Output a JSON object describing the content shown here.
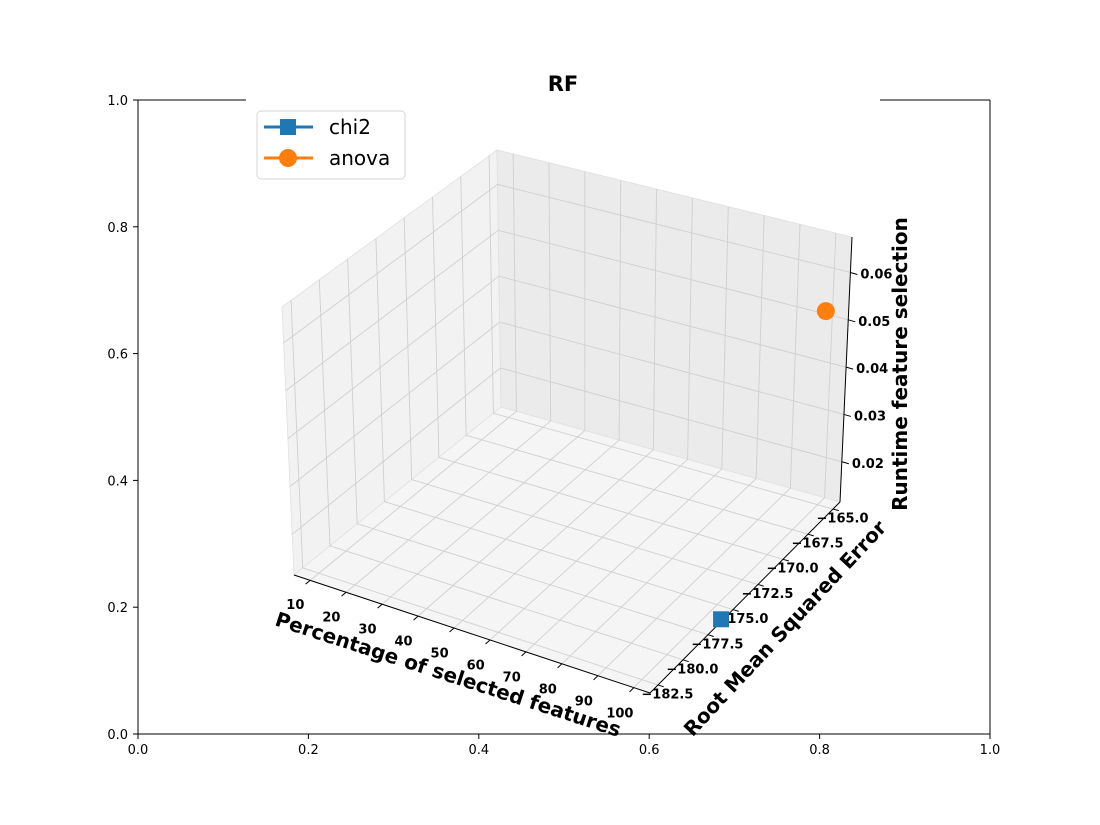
{
  "chart_data": {
    "type": "scatter",
    "projection": "3d",
    "title": "RF",
    "xlabel": "Percentage of selected features",
    "ylabel": "Root Mean Squared Error",
    "zlabel": "Runtime feature selection",
    "xticks": [
      "10",
      "20",
      "30",
      "40",
      "50",
      "60",
      "70",
      "80",
      "90",
      "100"
    ],
    "yticks": [
      "−182.5",
      "−180.0",
      "−177.5",
      "−175.0",
      "−172.5",
      "−170.0",
      "−167.5",
      "−165.0"
    ],
    "zticks": [
      "0.02",
      "0.03",
      "0.04",
      "0.05",
      "0.06"
    ],
    "outer_axes": {
      "xticks": [
        "0.0",
        "0.2",
        "0.4",
        "0.6",
        "0.8",
        "1.0"
      ],
      "yticks": [
        "0.0",
        "0.2",
        "0.4",
        "0.6",
        "0.8",
        "1.0"
      ],
      "xlim": [
        0,
        1
      ],
      "ylim": [
        0,
        1
      ]
    },
    "grid": true,
    "legend_position": "upper-left",
    "series": [
      {
        "name": "chi2",
        "color": "#1f77b4",
        "marker": "square",
        "points": [
          {
            "x": 100,
            "y": -175.3,
            "z": 0.011
          }
        ]
      },
      {
        "name": "anova",
        "color": "#ff7f0e",
        "marker": "circle",
        "points": [
          {
            "x": 100,
            "y": -164.8,
            "z": 0.056
          }
        ]
      }
    ]
  }
}
